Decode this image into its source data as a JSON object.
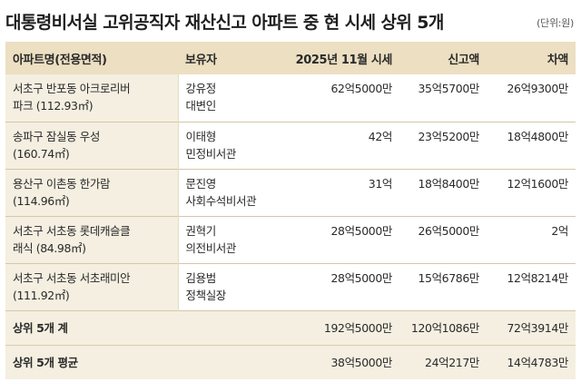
{
  "title": "대통령비서실 고위공직자 재산신고 아파트 중 현 시세 상위 5개",
  "unit": "(단위:원)",
  "columns": {
    "name": "아파트명(전용면적)",
    "owner": "보유자",
    "market": "2025년 11월 시세",
    "reported": "신고액",
    "diff": "차액"
  },
  "rows": [
    {
      "name_line1": "서초구 반포동 아크로리버",
      "name_line2": "파크 (112.93㎡)",
      "owner_line1": "강유정",
      "owner_line2": "대변인",
      "market": "62억5000만",
      "reported": "35억5700만",
      "diff": "26억9300만"
    },
    {
      "name_line1": "송파구 잠실동 우성",
      "name_line2": "(160.74㎡)",
      "owner_line1": "이태형",
      "owner_line2": "민정비서관",
      "market": "42억",
      "reported": "23억5200만",
      "diff": "18억4800만"
    },
    {
      "name_line1": "용산구 이촌동 한가람",
      "name_line2": "(114.96㎡)",
      "owner_line1": "문진영",
      "owner_line2": "사회수석비서관",
      "market": "31억",
      "reported": "18억8400만",
      "diff": "12억1600만"
    },
    {
      "name_line1": "서초구 서초동 롯데캐슬클",
      "name_line2": "래식 (84.98㎡)",
      "owner_line1": "권혁기",
      "owner_line2": "의전비서관",
      "market": "28억5000만",
      "reported": "26억5000만",
      "diff": "2억"
    },
    {
      "name_line1": "서초구 서초동 서초래미안",
      "name_line2": "(111.92㎡)",
      "owner_line1": "김용범",
      "owner_line2": "정책실장",
      "market": "28억5000만",
      "reported": "15억6786만",
      "diff": "12억8214만"
    }
  ],
  "summary": [
    {
      "label": "상위 5개 계",
      "market": "192억5000만",
      "reported": "120억1086만",
      "diff": "72억3914만"
    },
    {
      "label": "상위 5개 평균",
      "market": "38억5000만",
      "reported": "24억217만",
      "diff": "14억4783만"
    }
  ]
}
